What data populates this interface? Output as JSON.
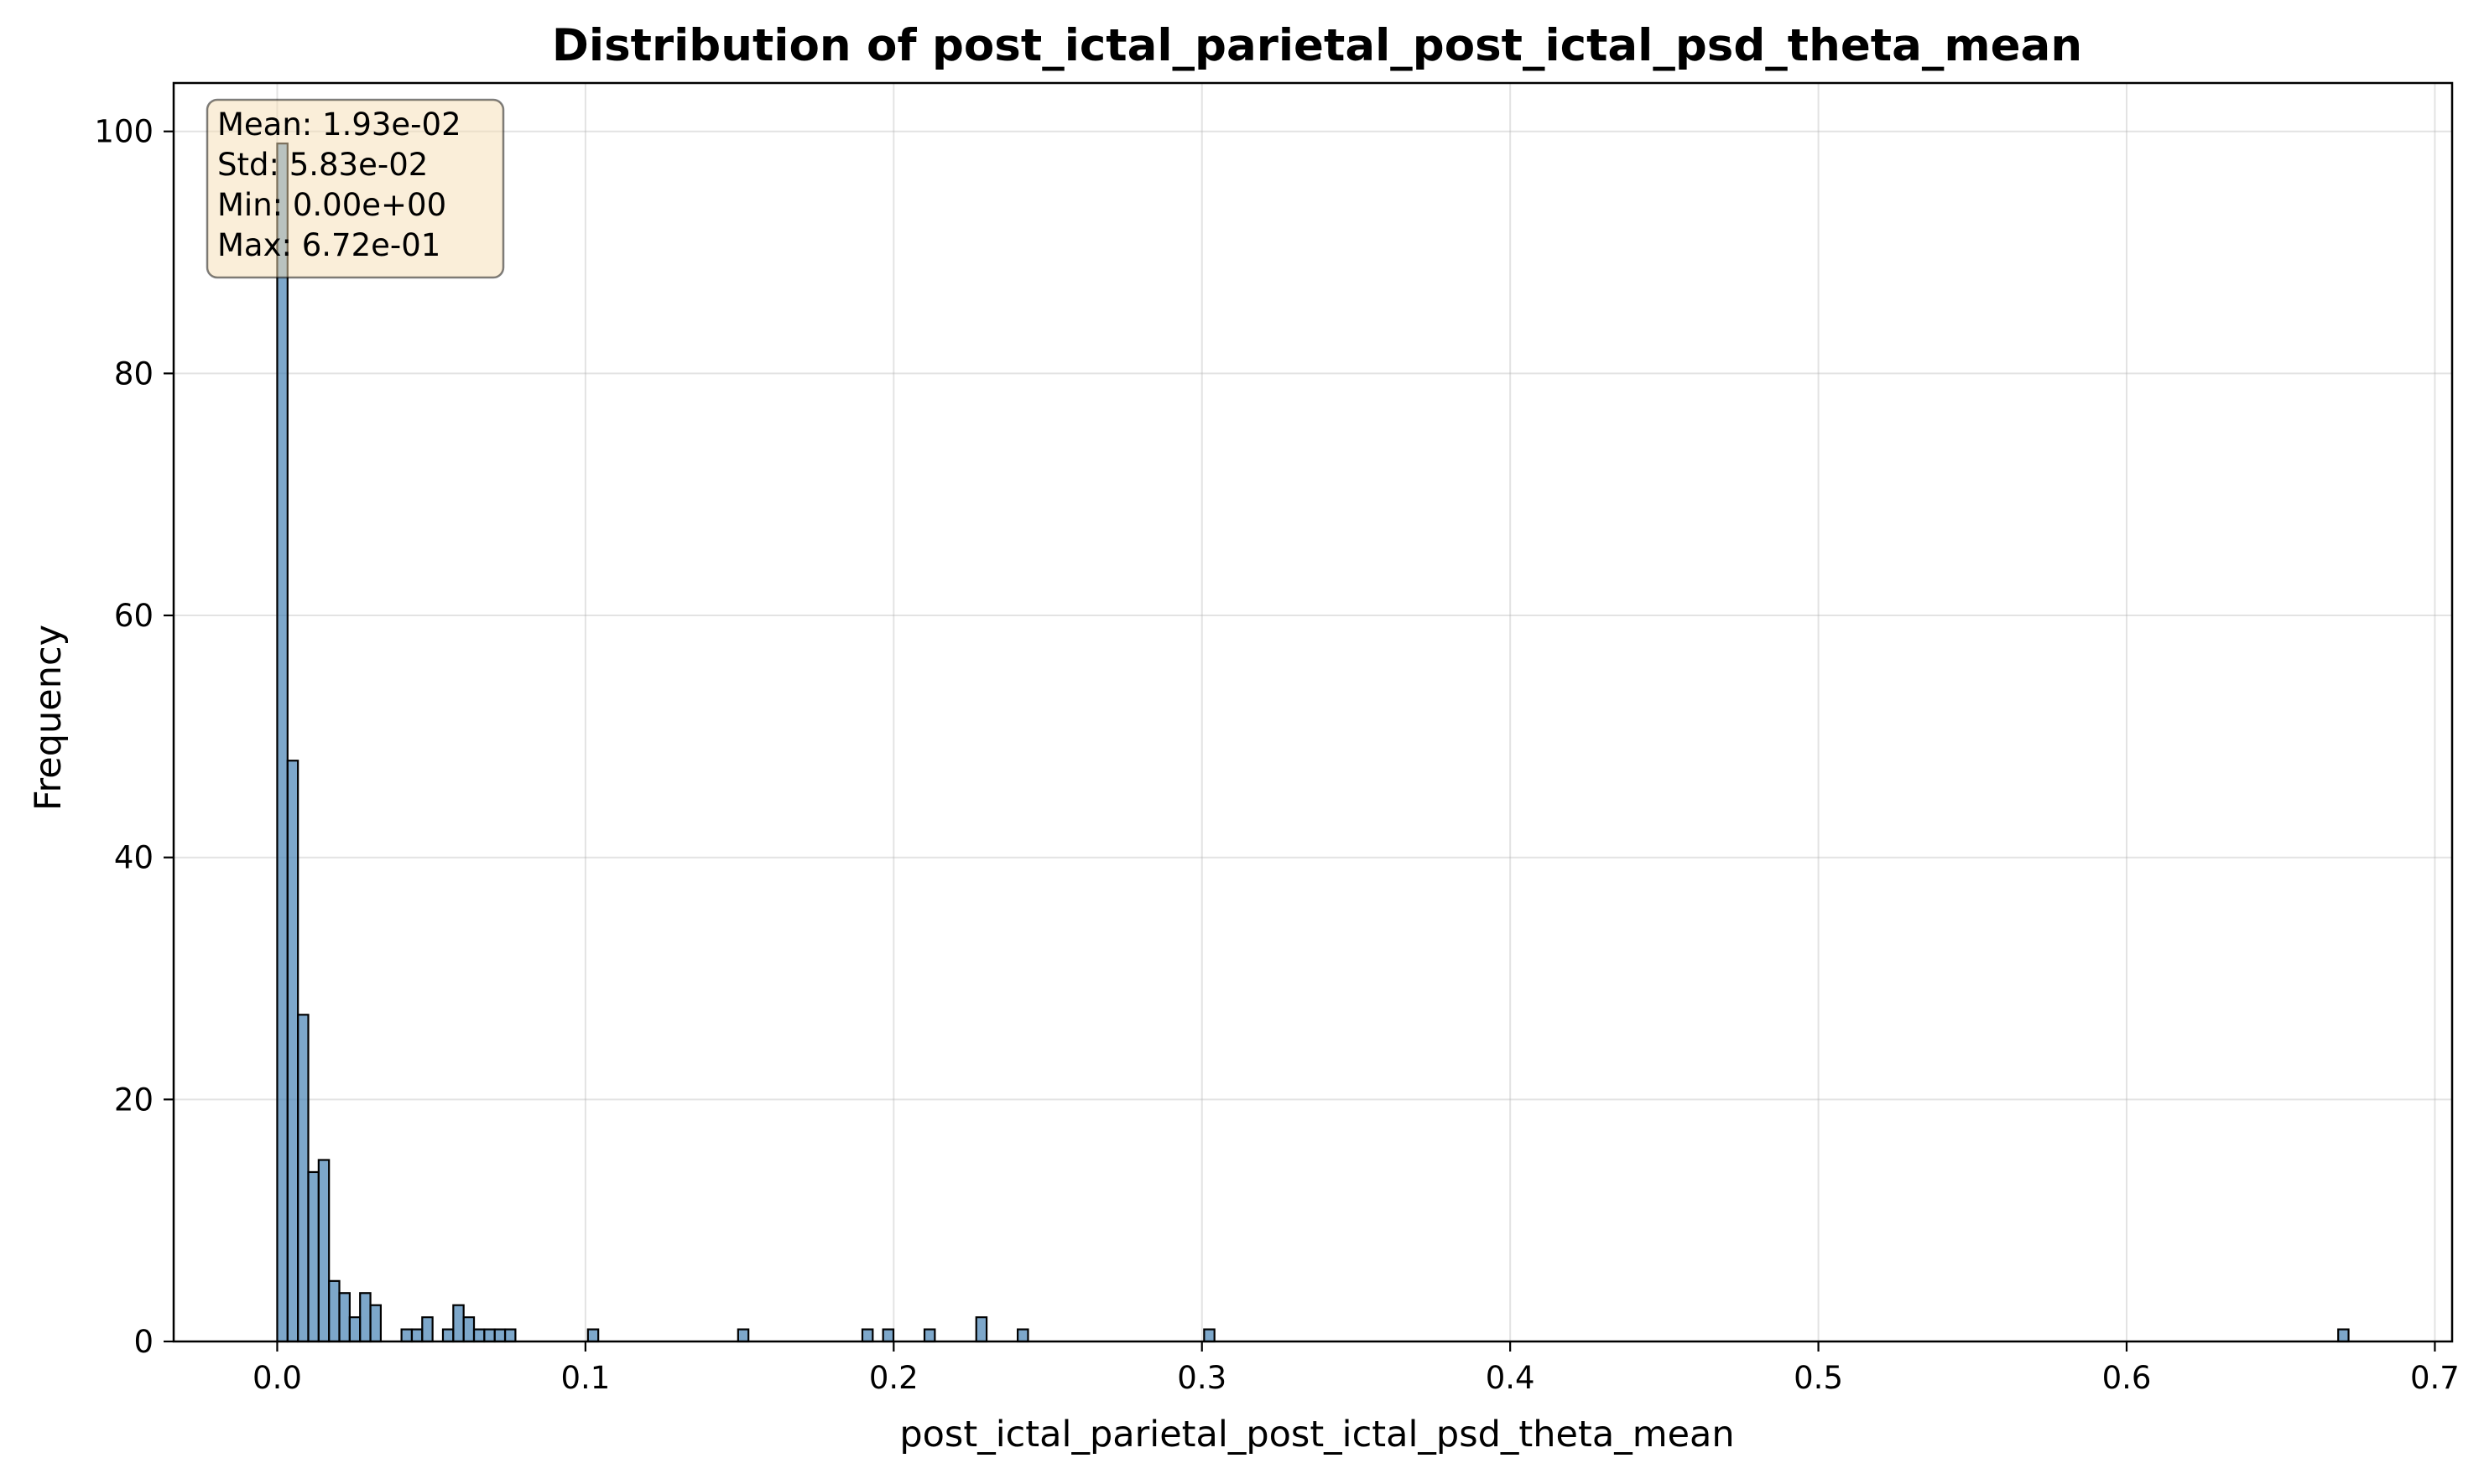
{
  "chart_data": {
    "type": "bar",
    "title": "Distribution of post_ictal_parietal_post_ictal_psd_theta_mean",
    "xlabel": "post_ictal_parietal_post_ictal_psd_theta_mean",
    "ylabel": "Frequency",
    "xlim": [
      -0.0336,
      0.7056
    ],
    "ylim": [
      0,
      104
    ],
    "grid": true,
    "bar_color": "#4682b4",
    "bar_edge_color": "#000000",
    "bin_width": 0.00336,
    "x_ticks": [
      "0.0",
      "0.1",
      "0.2",
      "0.3",
      "0.4",
      "0.5",
      "0.6",
      "0.7"
    ],
    "x_tick_values": [
      0.0,
      0.1,
      0.2,
      0.3,
      0.4,
      0.5,
      0.6,
      0.7
    ],
    "y_ticks": [
      "0",
      "20",
      "40",
      "60",
      "80",
      "100"
    ],
    "y_tick_values": [
      0,
      20,
      40,
      60,
      80,
      100
    ],
    "bins": [
      {
        "x": 0.0,
        "count": 99
      },
      {
        "x": 0.00336,
        "count": 48
      },
      {
        "x": 0.00672,
        "count": 27
      },
      {
        "x": 0.01008,
        "count": 14
      },
      {
        "x": 0.01344,
        "count": 15
      },
      {
        "x": 0.0168,
        "count": 5
      },
      {
        "x": 0.02016,
        "count": 4
      },
      {
        "x": 0.02352,
        "count": 2
      },
      {
        "x": 0.02688,
        "count": 4
      },
      {
        "x": 0.03024,
        "count": 3
      },
      {
        "x": 0.04032,
        "count": 1
      },
      {
        "x": 0.04368,
        "count": 1
      },
      {
        "x": 0.04704,
        "count": 2
      },
      {
        "x": 0.0504,
        "count": 0
      },
      {
        "x": 0.05376,
        "count": 1
      },
      {
        "x": 0.05712,
        "count": 3
      },
      {
        "x": 0.06048,
        "count": 2
      },
      {
        "x": 0.06384,
        "count": 1
      },
      {
        "x": 0.0672,
        "count": 1
      },
      {
        "x": 0.07056,
        "count": 1
      },
      {
        "x": 0.07392,
        "count": 1
      },
      {
        "x": 0.1008,
        "count": 1
      },
      {
        "x": 0.14952,
        "count": 1
      },
      {
        "x": 0.18984,
        "count": 1
      },
      {
        "x": 0.19656,
        "count": 1
      },
      {
        "x": 0.20999,
        "count": 1
      },
      {
        "x": 0.22679,
        "count": 2
      },
      {
        "x": 0.24023,
        "count": 1
      },
      {
        "x": 0.30071,
        "count": 1
      },
      {
        "x": 0.66864,
        "count": 1
      }
    ],
    "stats_box": {
      "lines": [
        "Mean: 1.93e-02",
        "Std: 5.83e-02",
        "Min: 0.00e+00",
        "Max: 6.72e-01"
      ],
      "background": "#f5deb3",
      "placement": "top-left"
    }
  }
}
